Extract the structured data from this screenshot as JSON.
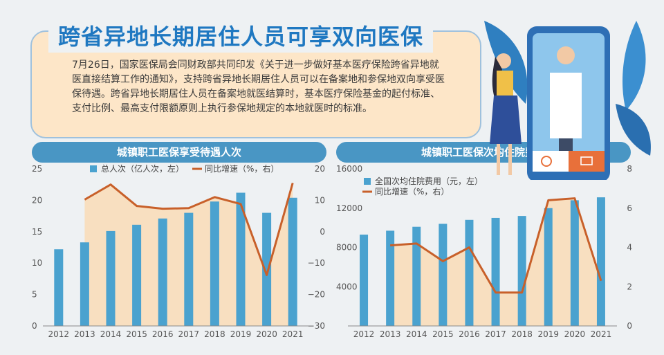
{
  "header": {
    "title": "跨省异地长期居住人员可享双向医保",
    "intro": "7月26日，国家医保局会同财政部共同印发《关于进一步做好基本医疗保险跨省异地就医直接结算工作的通知》，支持跨省异地长期居住人员可以在备案地和参保地双向享受医保待遇。跨省异地长期居住人员在备案地就医结算时，基本医疗保险基金的起付标准、支付比例、最高支付限额原则上执行参保地规定的本地就医时的标准。"
  },
  "colors": {
    "bar": "#4aa2cf",
    "line": "#c8602a",
    "area": "#f9dcb6",
    "banner": "#4996c4",
    "title": "#1f78c1"
  },
  "chart_data": [
    {
      "type": "bar",
      "title": "城镇职工医保享受待遇人次",
      "categories": [
        "2012",
        "2013",
        "2014",
        "2015",
        "2016",
        "2017",
        "2018",
        "2019",
        "2020",
        "2021"
      ],
      "series": [
        {
          "name": "总人次（亿人次，左）",
          "type": "bar",
          "axis": "left",
          "values": [
            12.2,
            13.3,
            15.1,
            16.1,
            17.1,
            18.0,
            19.8,
            21.2,
            18.0,
            20.4
          ]
        },
        {
          "name": "同比增速（%，右）",
          "type": "line",
          "axis": "right",
          "values": [
            null,
            10.2,
            15.0,
            8.2,
            7.3,
            7.5,
            11.0,
            8.8,
            -13.8,
            15.5
          ]
        }
      ],
      "y_left": {
        "range": [
          0,
          25
        ],
        "ticks": [
          0,
          5,
          10,
          15,
          20,
          25
        ]
      },
      "y_right": {
        "range": [
          -30,
          20
        ],
        "ticks": [
          -30,
          -20,
          -10,
          0,
          10,
          20
        ],
        "tick_labels": [
          "−30",
          "−20",
          "−10",
          "0",
          "10",
          "20"
        ]
      },
      "legend": "top-center",
      "grid": false
    },
    {
      "type": "bar",
      "title": "城镇职工医保次均住院费用",
      "categories": [
        "2012",
        "2013",
        "2014",
        "2015",
        "2016",
        "2017",
        "2018",
        "2019",
        "2020",
        "2021"
      ],
      "series": [
        {
          "name": "全国次均住院费用（元，左）",
          "type": "bar",
          "axis": "left",
          "values": [
            9300,
            9700,
            10100,
            10400,
            10800,
            11000,
            11200,
            12000,
            12800,
            13100
          ]
        },
        {
          "name": "同比增速（%，右）",
          "type": "line",
          "axis": "right",
          "values": [
            null,
            4.1,
            4.2,
            3.3,
            4.0,
            1.7,
            1.7,
            6.4,
            6.5,
            2.3
          ]
        }
      ],
      "y_left": {
        "range": [
          0,
          16000
        ],
        "ticks": [
          4000,
          8000,
          12000,
          16000
        ]
      },
      "y_right": {
        "range": [
          0,
          8
        ],
        "ticks": [
          0,
          2,
          4,
          6,
          8
        ]
      },
      "legend": "top-left",
      "grid": false
    }
  ]
}
